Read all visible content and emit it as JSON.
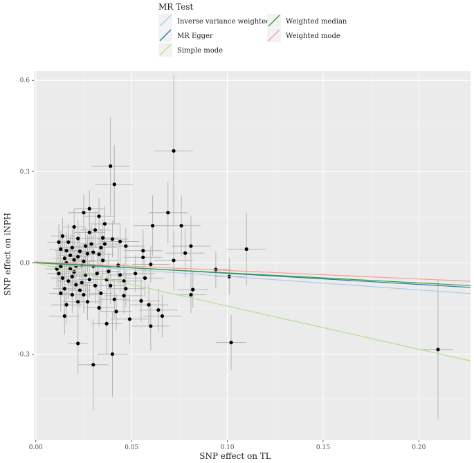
{
  "chart_data": {
    "type": "scatter",
    "xlabel": "SNP effect on  TL",
    "ylabel": "SNP effect on iNPH",
    "xlim": [
      -0.001,
      0.227
    ],
    "ylim": [
      -0.583,
      0.63
    ],
    "x_ticks": [
      "0.00",
      "0.05",
      "0.10",
      "0.15",
      "0.20"
    ],
    "x_tick_values": [
      0,
      0.05,
      0.1,
      0.15,
      0.2
    ],
    "y_ticks": [
      "-0.3",
      "0.0",
      "0.3",
      "0.6"
    ],
    "y_tick_values": [
      -0.3,
      0,
      0.3,
      0.6
    ],
    "grid": true,
    "legend": {
      "title": "MR Test",
      "position": "top",
      "entries": [
        {
          "label": "Inverse variance weighted",
          "color": "#a6cee3"
        },
        {
          "label": "MR Egger",
          "color": "#1f78b4"
        },
        {
          "label": "Simple mode",
          "color": "#b2df8a"
        },
        {
          "label": "Weighted median",
          "color": "#33a02c"
        },
        {
          "label": "Weighted mode",
          "color": "#fb9a99"
        }
      ]
    },
    "lines": [
      {
        "name": "Inverse variance weighted",
        "color": "#a6cee3",
        "intercept": 0,
        "slope": -0.445
      },
      {
        "name": "MR Egger",
        "color": "#1f78b4",
        "intercept": 0.002,
        "slope": -0.365
      },
      {
        "name": "Simple mode",
        "color": "#b2df8a",
        "intercept": 0,
        "slope": -1.42
      },
      {
        "name": "Weighted median",
        "color": "#33a02c",
        "intercept": 0,
        "slope": -0.33
      },
      {
        "name": "Weighted mode",
        "color": "#fb9a99",
        "intercept": 0.003,
        "slope": -0.28
      }
    ],
    "points": [
      [
        0.039,
        0.318,
        0.16,
        0.01
      ],
      [
        0.041,
        0.258,
        0.13,
        0.01
      ],
      [
        0.072,
        0.368,
        0.25,
        0.01
      ],
      [
        0.069,
        0.165,
        0.1,
        0.01
      ],
      [
        0.076,
        0.122,
        0.1,
        0.01
      ],
      [
        0.061,
        0.122,
        0.1,
        0.01
      ],
      [
        0.11,
        0.045,
        0.12,
        0.01
      ],
      [
        0.081,
        0.055,
        0.1,
        0.01
      ],
      [
        0.072,
        0.008,
        0.1,
        0.01
      ],
      [
        0.078,
        0.032,
        0.08,
        0.01
      ],
      [
        0.094,
        -0.022,
        0.06,
        0.008
      ],
      [
        0.101,
        -0.045,
        0.06,
        0.008
      ],
      [
        0.081,
        -0.105,
        0.06,
        0.008
      ],
      [
        0.082,
        -0.088,
        0.06,
        0.008
      ],
      [
        0.102,
        -0.262,
        0.09,
        0.008
      ],
      [
        0.21,
        -0.285,
        0.23,
        0.008
      ],
      [
        0.03,
        -0.335,
        0.15,
        0.008
      ],
      [
        0.04,
        -0.3,
        0.14,
        0.008
      ],
      [
        0.022,
        -0.265,
        0.1,
        0.005
      ],
      [
        0.037,
        -0.2,
        0.1,
        0.008
      ],
      [
        0.06,
        -0.208,
        0.08,
        0.01
      ],
      [
        0.049,
        -0.185,
        0.08,
        0.01
      ],
      [
        0.066,
        -0.175,
        0.07,
        0.01
      ],
      [
        0.059,
        -0.138,
        0.07,
        0.01
      ],
      [
        0.064,
        -0.155,
        0.07,
        0.01
      ],
      [
        0.055,
        -0.125,
        0.07,
        0.01
      ],
      [
        0.056,
        0.04,
        0.07,
        0.01
      ],
      [
        0.056,
        0.018,
        0.07,
        0.01
      ],
      [
        0.06,
        -0.005,
        0.06,
        0.01
      ],
      [
        0.052,
        -0.035,
        0.06,
        0.01
      ],
      [
        0.057,
        -0.05,
        0.06,
        0.01
      ],
      [
        0.047,
        -0.085,
        0.06,
        0.01
      ],
      [
        0.046,
        -0.108,
        0.06,
        0.01
      ],
      [
        0.047,
        0.055,
        0.06,
        0.01
      ],
      [
        0.044,
        0.07,
        0.06,
        0.01
      ],
      [
        0.046,
        -0.06,
        0.06,
        0.01
      ],
      [
        0.04,
        0.078,
        0.06,
        0.008
      ],
      [
        0.036,
        0.128,
        0.06,
        0.008
      ],
      [
        0.033,
        0.153,
        0.06,
        0.008
      ],
      [
        0.028,
        0.178,
        0.06,
        0.008
      ],
      [
        0.025,
        0.165,
        0.06,
        0.008
      ],
      [
        0.031,
        0.108,
        0.06,
        0.008
      ],
      [
        0.028,
        0.1,
        0.06,
        0.008
      ],
      [
        0.035,
        0.082,
        0.06,
        0.008
      ],
      [
        0.034,
        0.05,
        0.06,
        0.008
      ],
      [
        0.036,
        0.062,
        0.06,
        0.008
      ],
      [
        0.033,
        0.028,
        0.06,
        0.008
      ],
      [
        0.035,
        0.008,
        0.06,
        0.008
      ],
      [
        0.03,
        -0.012,
        0.06,
        0.008
      ],
      [
        0.037,
        -0.055,
        0.06,
        0.008
      ],
      [
        0.039,
        -0.075,
        0.06,
        0.008
      ],
      [
        0.042,
        -0.16,
        0.06,
        0.008
      ],
      [
        0.041,
        -0.12,
        0.06,
        0.008
      ],
      [
        0.033,
        -0.148,
        0.06,
        0.008
      ],
      [
        0.027,
        -0.128,
        0.06,
        0.008
      ],
      [
        0.025,
        -0.105,
        0.06,
        0.008
      ],
      [
        0.022,
        -0.128,
        0.06,
        0.008
      ],
      [
        0.019,
        -0.105,
        0.06,
        0.008
      ],
      [
        0.016,
        -0.138,
        0.06,
        0.008
      ],
      [
        0.015,
        -0.175,
        0.06,
        0.008
      ],
      [
        0.014,
        0.088,
        0.06,
        0.006
      ],
      [
        0.017,
        0.068,
        0.06,
        0.006
      ],
      [
        0.02,
        0.118,
        0.06,
        0.006
      ],
      [
        0.022,
        0.08,
        0.06,
        0.006
      ],
      [
        0.012,
        0.068,
        0.06,
        0.006
      ],
      [
        0.013,
        0.045,
        0.06,
        0.006
      ],
      [
        0.016,
        0.04,
        0.06,
        0.006
      ],
      [
        0.018,
        0.025,
        0.06,
        0.006
      ],
      [
        0.02,
        0.01,
        0.06,
        0.006
      ],
      [
        0.023,
        0.038,
        0.06,
        0.006
      ],
      [
        0.026,
        0.055,
        0.06,
        0.006
      ],
      [
        0.024,
        -0.008,
        0.06,
        0.006
      ],
      [
        0.013,
        -0.012,
        0.06,
        0.006
      ],
      [
        0.012,
        -0.035,
        0.06,
        0.006
      ],
      [
        0.014,
        -0.05,
        0.06,
        0.006
      ],
      [
        0.017,
        -0.06,
        0.06,
        0.006
      ],
      [
        0.019,
        -0.045,
        0.06,
        0.006
      ],
      [
        0.021,
        -0.072,
        0.06,
        0.006
      ],
      [
        0.023,
        -0.09,
        0.06,
        0.006
      ],
      [
        0.015,
        -0.085,
        0.06,
        0.006
      ],
      [
        0.013,
        -0.1,
        0.06,
        0.006
      ],
      [
        0.018,
        -0.02,
        0.06,
        0.006
      ],
      [
        0.02,
        -0.03,
        0.06,
        0.006
      ],
      [
        0.016,
        0.0,
        0.06,
        0.006
      ],
      [
        0.026,
        -0.04,
        0.06,
        0.006
      ],
      [
        0.028,
        -0.055,
        0.06,
        0.006
      ],
      [
        0.031,
        -0.075,
        0.06,
        0.006
      ],
      [
        0.029,
        0.062,
        0.06,
        0.006
      ],
      [
        0.027,
        0.03,
        0.06,
        0.006
      ],
      [
        0.032,
        -0.035,
        0.06,
        0.006
      ],
      [
        0.038,
        -0.028,
        0.06,
        0.006
      ],
      [
        0.043,
        -0.008,
        0.06,
        0.006
      ],
      [
        0.044,
        -0.04,
        0.06,
        0.006
      ],
      [
        0.015,
        0.015,
        0.06,
        0.006
      ],
      [
        0.022,
        0.02,
        0.06,
        0.006
      ],
      [
        0.025,
        0.005,
        0.06,
        0.006
      ],
      [
        0.011,
        -0.02,
        0.06,
        0.006
      ],
      [
        0.019,
        0.05,
        0.06,
        0.006
      ],
      [
        0.021,
        -0.01,
        0.06,
        0.006
      ],
      [
        0.024,
        -0.065,
        0.06,
        0.006
      ],
      [
        0.03,
        0.035,
        0.06,
        0.006
      ],
      [
        0.034,
        -0.1,
        0.06,
        0.006
      ]
    ]
  }
}
